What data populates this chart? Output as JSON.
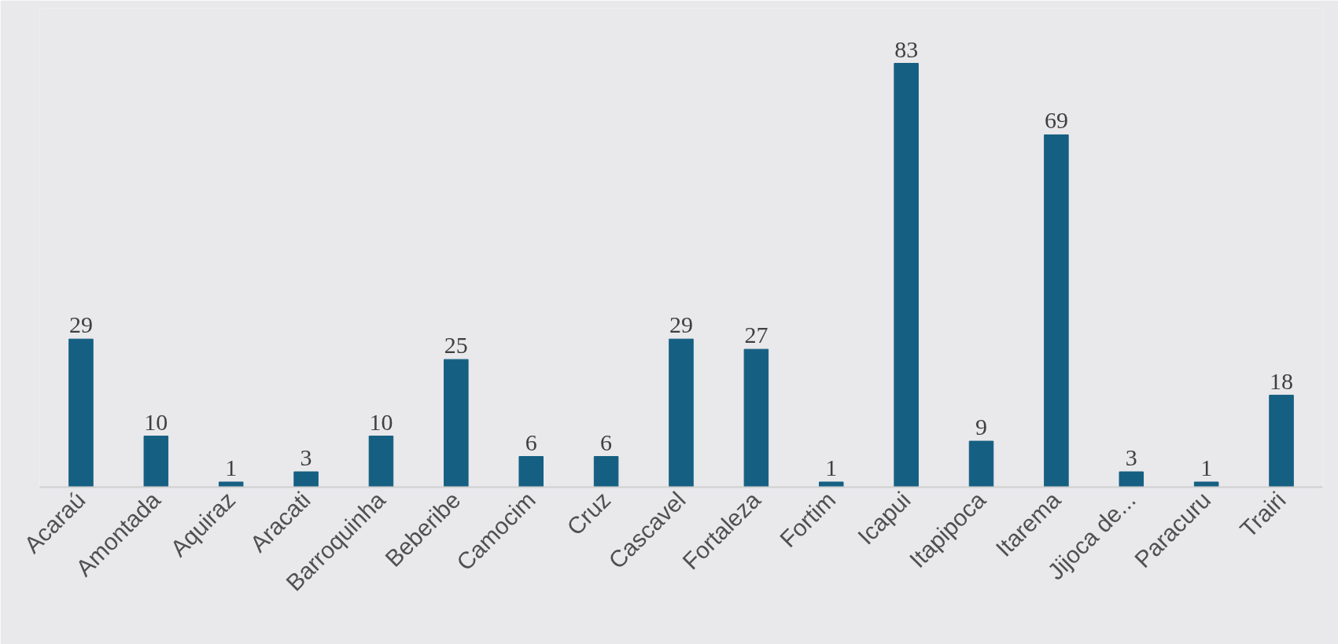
{
  "chart_data": {
    "type": "bar",
    "categories": [
      "Acaraú",
      "Amontada",
      "Aquiraz",
      "Aracati",
      "Barroquinha",
      "Beberibe",
      "Camocim",
      "Cruz",
      "Cascavel",
      "Fortaleza",
      "Fortim",
      "Icapui",
      "Itapipoca",
      "Itarema",
      "Jijoca de...",
      "Paracuru",
      "Trairi"
    ],
    "values": [
      29,
      10,
      1,
      3,
      10,
      25,
      6,
      6,
      29,
      27,
      1,
      83,
      9,
      69,
      3,
      1,
      18
    ],
    "color": "#155f82",
    "data_labels": true,
    "grid": false
  }
}
